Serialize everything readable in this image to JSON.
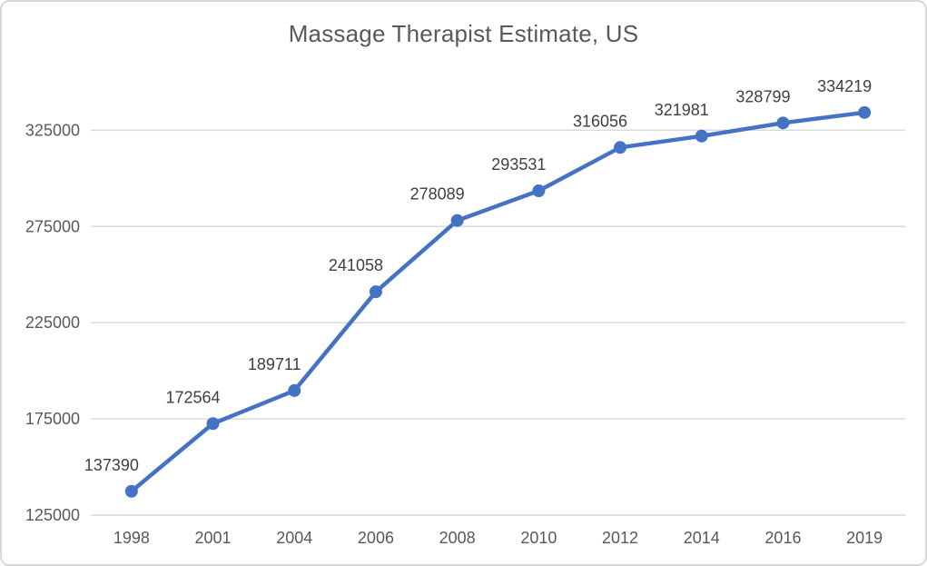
{
  "chart": {
    "title": "Massage Therapist Estimate, US"
  },
  "chart_data": {
    "type": "line",
    "title": "Massage Therapist Estimate, US",
    "categories": [
      "1998",
      "2001",
      "2004",
      "2006",
      "2008",
      "2010",
      "2012",
      "2014",
      "2016",
      "2019"
    ],
    "values": [
      137390,
      172564,
      189711,
      241058,
      278089,
      293531,
      316056,
      321981,
      328799,
      334219
    ],
    "xlabel": "",
    "ylabel": "",
    "ylim": [
      125000,
      345000
    ],
    "yticks": [
      125000,
      175000,
      225000,
      275000,
      325000
    ],
    "grid": true,
    "legend": false,
    "data_labels": true,
    "series_color": "#4472C4",
    "marker": "circle"
  },
  "colors": {
    "series": "#4472C4",
    "gridline": "#d9d9d9",
    "axis_text": "#595959",
    "data_label_text": "#404040",
    "title_text": "#595959",
    "frame_border": "#d8d8d8",
    "background": "#ffffff"
  }
}
